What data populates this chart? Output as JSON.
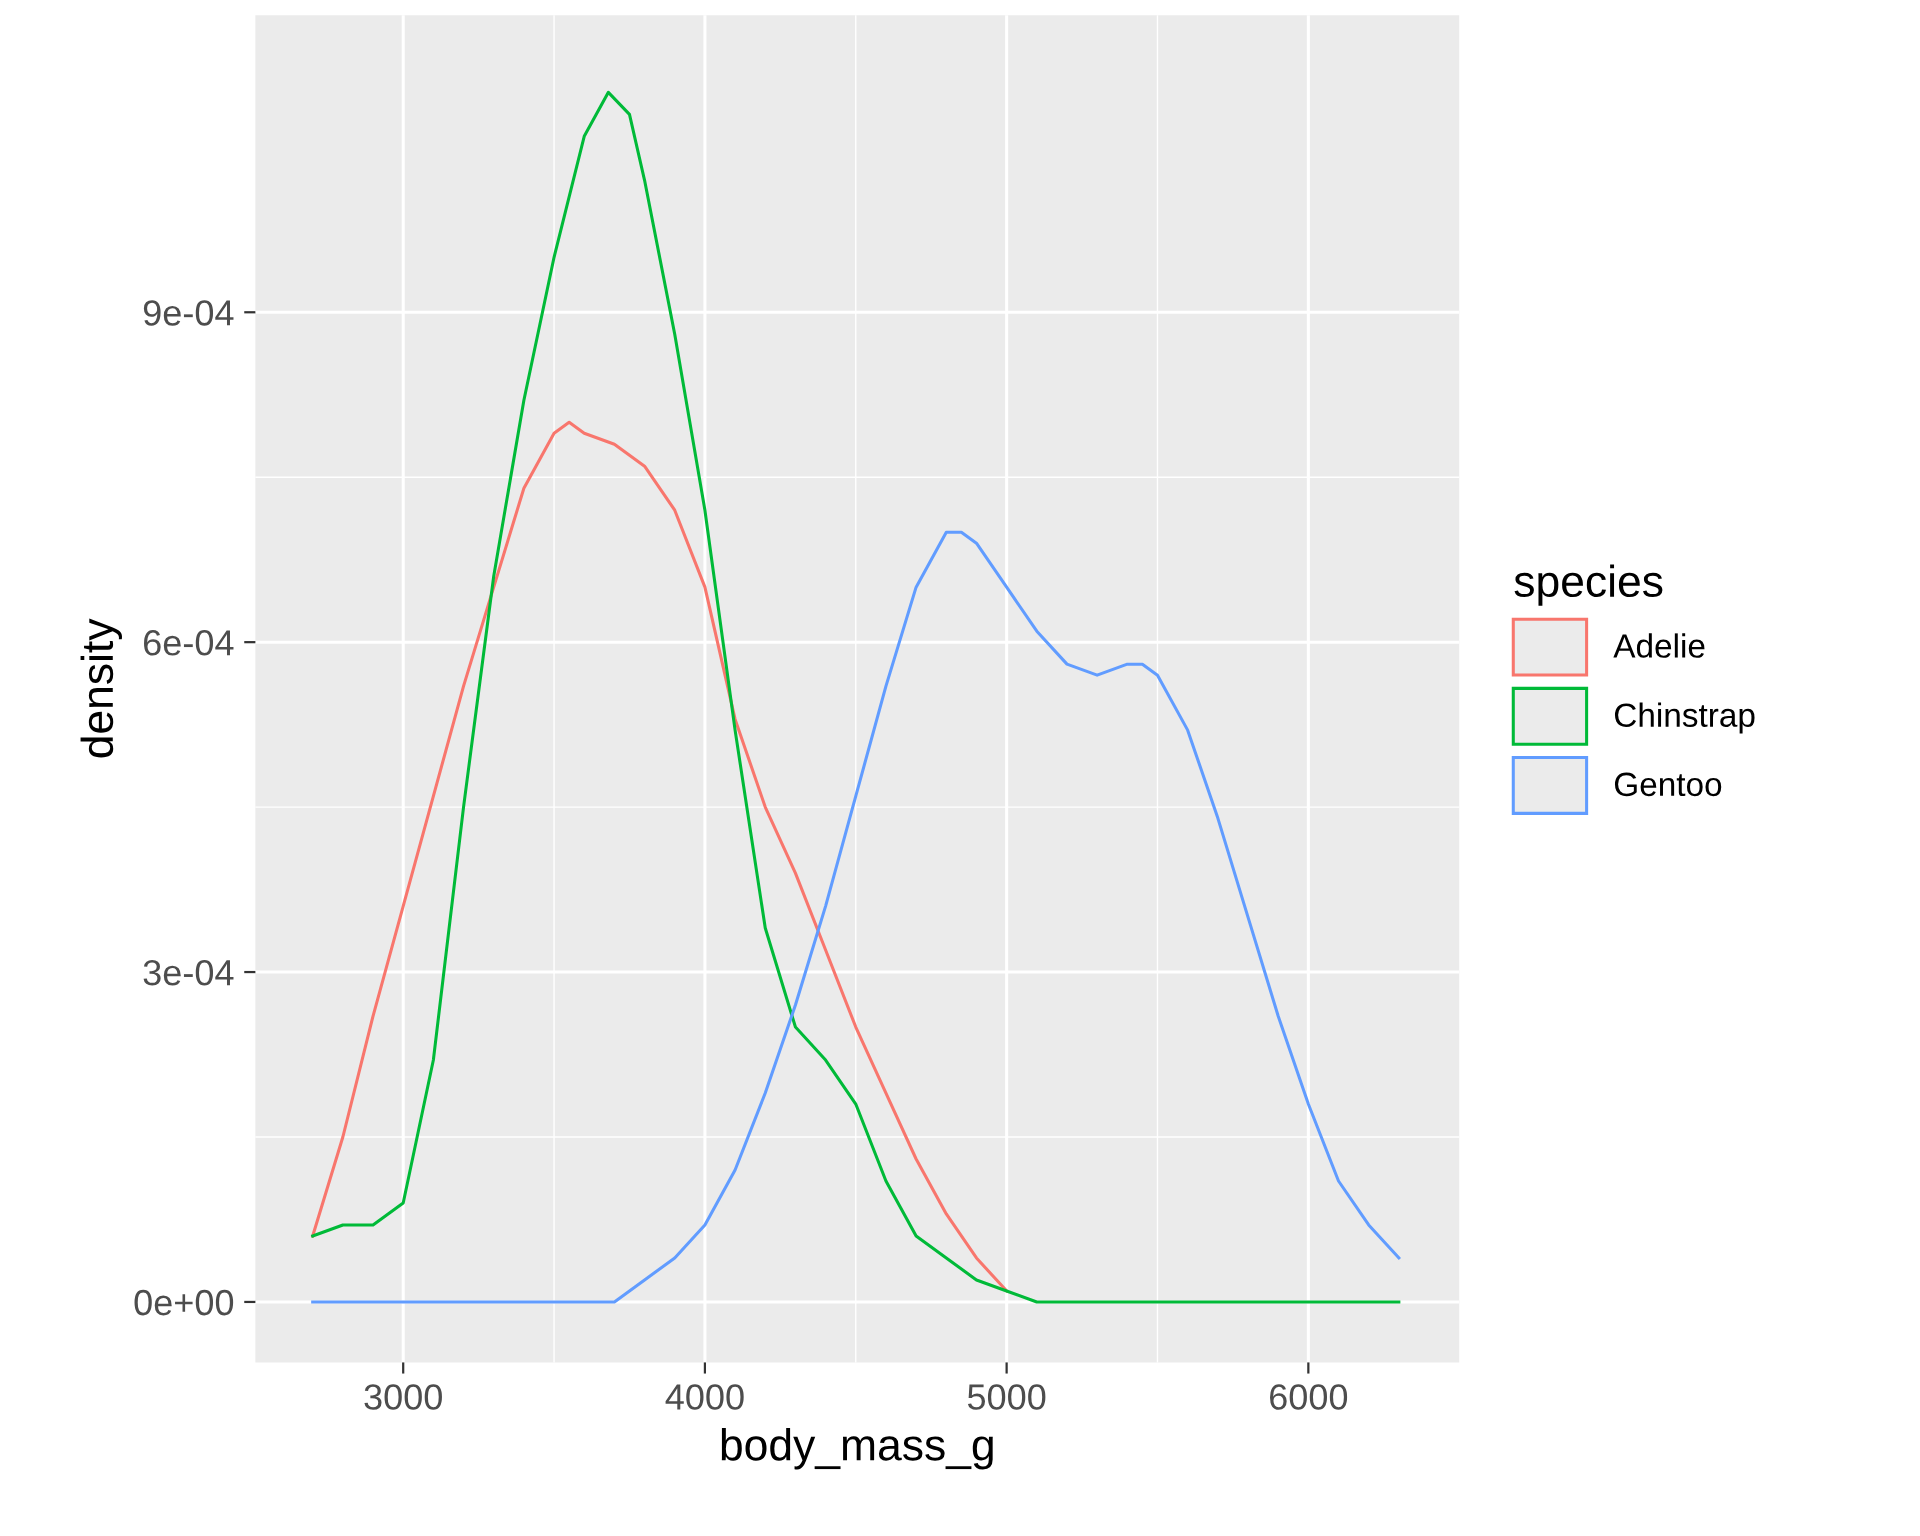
{
  "chart_data": {
    "type": "line",
    "xlabel": "body_mass_g",
    "ylabel": "density",
    "legend_title": "species",
    "legend": "right",
    "grid": true,
    "xlim": [
      2510,
      6500
    ],
    "xticks": [
      3000,
      4000,
      5000,
      6000
    ],
    "ylim": [
      -5.5e-05,
      0.00117
    ],
    "yticks": [
      {
        "value": 0,
        "label": "0e+00"
      },
      {
        "value": 0.0003,
        "label": "3e-04"
      },
      {
        "value": 0.0006,
        "label": "6e-04"
      },
      {
        "value": 0.0009,
        "label": "9e-04"
      }
    ],
    "series": [
      {
        "name": "Adelie",
        "color": "#f8766d",
        "x": [
          2700,
          2800,
          2900,
          3000,
          3100,
          3200,
          3300,
          3400,
          3500,
          3550,
          3600,
          3700,
          3800,
          3900,
          4000,
          4100,
          4200,
          4300,
          4400,
          4500,
          4600,
          4700,
          4800,
          4900,
          5000
        ],
        "values": [
          6e-05,
          0.00015,
          0.00026,
          0.00036,
          0.00046,
          0.00056,
          0.00065,
          0.00074,
          0.00079,
          0.0008,
          0.00079,
          0.00078,
          0.00076,
          0.00072,
          0.00065,
          0.00053,
          0.00045,
          0.00039,
          0.00032,
          0.00025,
          0.00019,
          0.00013,
          8e-05,
          4e-05,
          1e-05
        ]
      },
      {
        "name": "Chinstrap",
        "color": "#00ba38",
        "x": [
          2700,
          2800,
          2900,
          3000,
          3100,
          3200,
          3300,
          3400,
          3500,
          3600,
          3680,
          3750,
          3800,
          3900,
          4000,
          4100,
          4200,
          4300,
          4400,
          4500,
          4600,
          4700,
          4800,
          4900,
          5000,
          5100,
          5200,
          6300
        ],
        "values": [
          6e-05,
          7e-05,
          7e-05,
          9e-05,
          0.00022,
          0.00045,
          0.00066,
          0.00082,
          0.00095,
          0.00106,
          0.0011,
          0.00108,
          0.00102,
          0.00088,
          0.00072,
          0.00052,
          0.00034,
          0.00025,
          0.00022,
          0.00018,
          0.00011,
          6e-05,
          4e-05,
          2e-05,
          1e-05,
          0,
          0,
          0
        ]
      },
      {
        "name": "Gentoo",
        "color": "#619cff",
        "x": [
          2700,
          3500,
          3700,
          3800,
          3900,
          4000,
          4100,
          4200,
          4300,
          4400,
          4500,
          4600,
          4700,
          4800,
          4850,
          4900,
          5000,
          5100,
          5200,
          5300,
          5400,
          5450,
          5500,
          5600,
          5700,
          5800,
          5900,
          6000,
          6100,
          6200,
          6300
        ],
        "values": [
          0,
          0,
          0,
          2e-05,
          4e-05,
          7e-05,
          0.00012,
          0.00019,
          0.00027,
          0.00036,
          0.00046,
          0.00056,
          0.00065,
          0.0007,
          0.0007,
          0.00069,
          0.00065,
          0.00061,
          0.00058,
          0.00057,
          0.00058,
          0.00058,
          0.00057,
          0.00052,
          0.00044,
          0.00035,
          0.00026,
          0.00018,
          0.00011,
          7e-05,
          4e-05
        ]
      }
    ]
  }
}
